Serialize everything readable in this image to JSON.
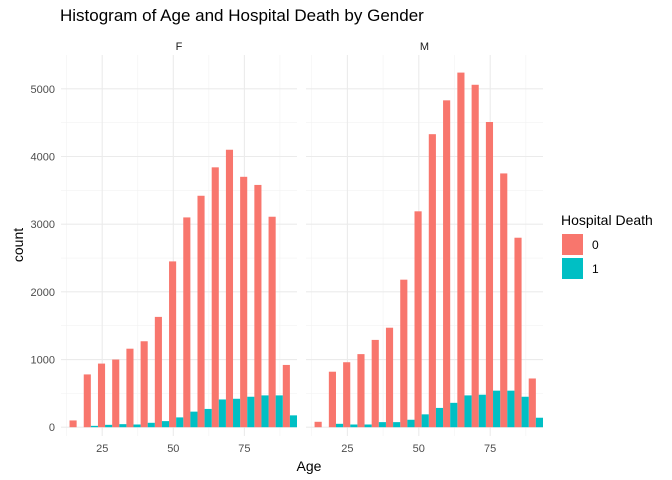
{
  "chart_data": {
    "type": "bar",
    "title": "Histogram of Age and Hospital Death by Gender",
    "xlabel": "Age",
    "ylabel": "count",
    "xlim": [
      10.5,
      93.5
    ],
    "ylim": [
      -130,
      5500
    ],
    "xticks": [
      25,
      50,
      75
    ],
    "yticks": [
      0,
      1000,
      2000,
      3000,
      4000,
      5000
    ],
    "bin_centers": [
      16,
      21,
      26,
      31,
      36,
      41,
      46,
      51,
      56,
      61,
      66,
      71,
      76,
      81,
      86,
      91
    ],
    "legend": {
      "title": "Hospital Death",
      "position": "right",
      "entries": [
        {
          "label": "0",
          "color": "#F8766D"
        },
        {
          "label": "1",
          "color": "#00BFC4"
        }
      ]
    },
    "grid": true,
    "panels": [
      {
        "label": "F",
        "series": [
          {
            "name": "0",
            "values": [
              100,
              780,
              940,
              1000,
              1160,
              1270,
              1630,
              2450,
              3100,
              3420,
              3840,
              4100,
              3700,
              3580,
              3110,
              920
            ]
          },
          {
            "name": "1",
            "values": [
              0,
              20,
              35,
              45,
              40,
              65,
              90,
              145,
              230,
              270,
              410,
              420,
              450,
              470,
              470,
              175
            ]
          }
        ]
      },
      {
        "label": "M",
        "series": [
          {
            "name": "0",
            "values": [
              80,
              820,
              960,
              1080,
              1290,
              1470,
              2180,
              3190,
              4330,
              4830,
              5240,
              5060,
              4510,
              3750,
              2800,
              720
            ]
          },
          {
            "name": "1",
            "values": [
              0,
              50,
              40,
              40,
              75,
              75,
              110,
              190,
              285,
              360,
              470,
              480,
              540,
              540,
              450,
              140
            ]
          }
        ]
      }
    ]
  }
}
